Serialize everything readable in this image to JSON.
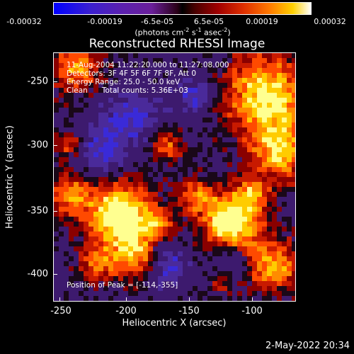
{
  "colorbar": {
    "ticks": [
      "-0.00032",
      "-0.00019",
      "-6.5e-05",
      "6.5e-05",
      "0.00019",
      "0.00032"
    ],
    "units_base": "(photons cm",
    "units_exp1": "-2",
    "units_mid1": " s",
    "units_exp2": "-1",
    "units_mid2": " asec",
    "units_exp3": "-2",
    "units_end": ")"
  },
  "title": "Reconstructed RHESSI Image",
  "annotations": {
    "line1": "11-Aug-2004 11:22:20.000 to 11:27:08.000",
    "line2": "Detectors: 3F 4F 5F 6F 7F 8F, Att 0",
    "line3": "Energy Range: 25.0 - 50.0 keV",
    "line4": "Clean      Total counts: 5.36E+03",
    "peak": "Position of Peak = [-114,-355]"
  },
  "axes": {
    "xlabel": "Heliocentric X (arcsec)",
    "ylabel": "Heliocentric Y (arcsec)",
    "xticks": [
      "-250",
      "-200",
      "-150",
      "-100"
    ],
    "yticks": [
      "-250",
      "-300",
      "-350",
      "-400"
    ]
  },
  "timestamp": "2-May-2022 20:34"
}
